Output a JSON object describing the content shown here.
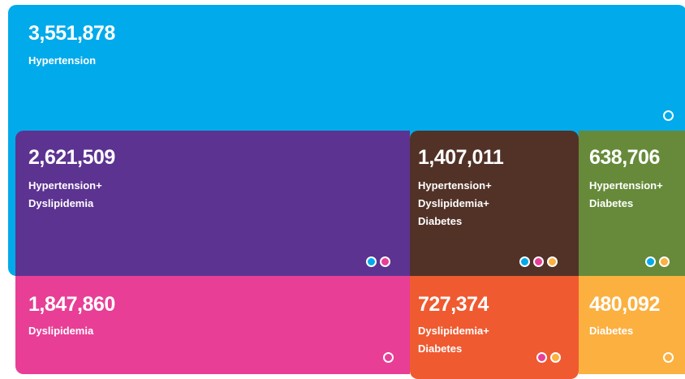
{
  "tiles": [
    {
      "count": "3,551,878",
      "label": [
        "Hypertension"
      ]
    },
    {
      "count": "2,621,509",
      "label": [
        "Hypertension+",
        "Dyslipidemia"
      ]
    },
    {
      "count": "1,407,011",
      "label": [
        "Hypertension+",
        "Dyslipidemia+",
        "Diabetes"
      ]
    },
    {
      "count": "638,706",
      "label": [
        "Hypertension+",
        "Diabetes"
      ]
    },
    {
      "count": "1,847,860",
      "label": [
        "Dyslipidemia"
      ]
    },
    {
      "count": "727,374",
      "label": [
        "Dyslipidemia+",
        "Diabetes"
      ]
    },
    {
      "count": "480,092",
      "label": [
        "Diabetes"
      ]
    }
  ]
}
